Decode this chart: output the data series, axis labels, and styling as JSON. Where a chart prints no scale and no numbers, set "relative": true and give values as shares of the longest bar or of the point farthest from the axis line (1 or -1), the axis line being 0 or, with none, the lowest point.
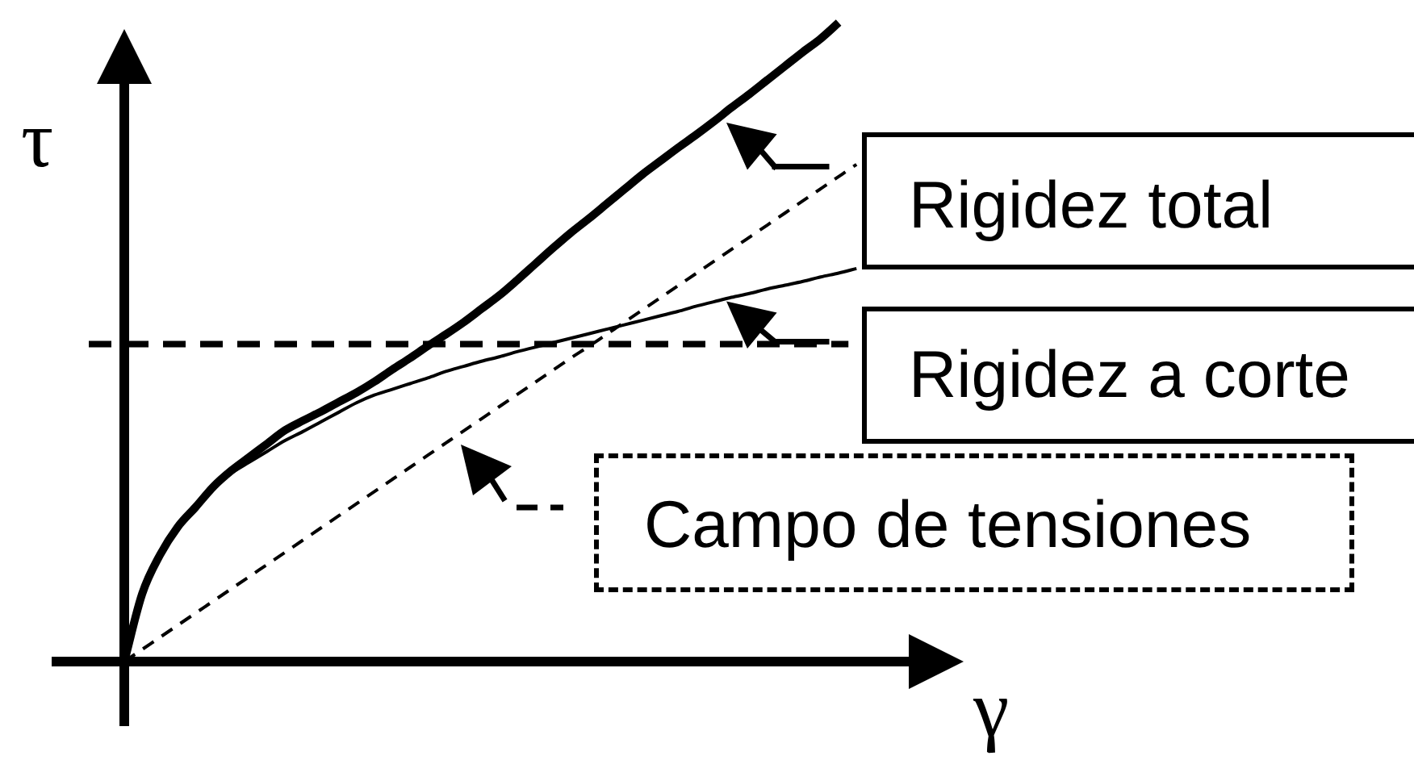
{
  "chart_data": {
    "type": "line",
    "relative": true,
    "xlabel": "γ",
    "ylabel": "τ",
    "marker": "none",
    "legend": "right",
    "categories": [
      null,
      null,
      null,
      null,
      null,
      null,
      null,
      null,
      null,
      null,
      null,
      null,
      null,
      null,
      null,
      null,
      null,
      null,
      null,
      null,
      null,
      null,
      null,
      null,
      null,
      null,
      null,
      null,
      null,
      null,
      null,
      null,
      null,
      null,
      null,
      null,
      null,
      null,
      null,
      null,
      null,
      null,
      null,
      null,
      null,
      null,
      null,
      null
    ],
    "series": [
      {
        "name": "Rigidez total",
        "color": "#000000",
        "line_style": "solid",
        "values": [
          0,
          0.106,
          0.167,
          0.211,
          0.242,
          0.274,
          0.299,
          0.32,
          0.341,
          0.362,
          0.377,
          0.391,
          0.406,
          0.421,
          0.438,
          0.457,
          0.475,
          0.494,
          0.512,
          0.531,
          0.552,
          0.573,
          0.597,
          0.622,
          0.647,
          0.671,
          0.693,
          0.716,
          0.739,
          0.762,
          0.783,
          0.804,
          0.824,
          0.845,
          0.867,
          0.888,
          0.91,
          0.932,
          0.954,
          0.975,
          1,
          null,
          null,
          null,
          null,
          null,
          null,
          null
        ]
      },
      {
        "name": "Rigidez a corte",
        "color": "#000000",
        "line_style": "solid",
        "values": [
          0,
          0.106,
          0.167,
          0.211,
          0.242,
          0.274,
          0.295,
          0.312,
          0.329,
          0.346,
          0.36,
          0.375,
          0.39,
          0.405,
          0.417,
          0.426,
          0.435,
          0.444,
          0.454,
          0.462,
          0.47,
          0.477,
          0.485,
          0.492,
          0.499,
          0.506,
          0.513,
          0.52,
          0.527,
          0.534,
          0.541,
          0.548,
          0.556,
          0.563,
          0.57,
          0.576,
          0.583,
          0.589,
          0.595,
          0.602,
          0.608,
          0.615,
          null,
          null,
          null,
          null,
          null,
          null
        ]
      },
      {
        "name": "Campo de tensiones",
        "color": "#000000",
        "line_style": "dashed",
        "values": [
          0,
          0.019,
          0.038,
          0.057,
          0.076,
          0.095,
          0.114,
          0.133,
          0.152,
          0.171,
          0.19,
          0.209,
          0.228,
          0.247,
          0.266,
          0.285,
          0.304,
          0.323,
          0.342,
          0.361,
          0.38,
          0.399,
          0.418,
          0.437,
          0.456,
          0.475,
          0.493,
          0.512,
          0.531,
          0.55,
          0.569,
          0.588,
          0.607,
          0.626,
          0.645,
          0.664,
          0.683,
          0.702,
          0.721,
          0.74,
          0.759,
          0.778,
          null,
          null,
          null,
          null,
          null,
          null
        ]
      }
    ],
    "ref_lines": [
      {
        "axis": "y",
        "value": 0.497,
        "line_style": "dashed",
        "color": "#000000"
      }
    ]
  }
}
